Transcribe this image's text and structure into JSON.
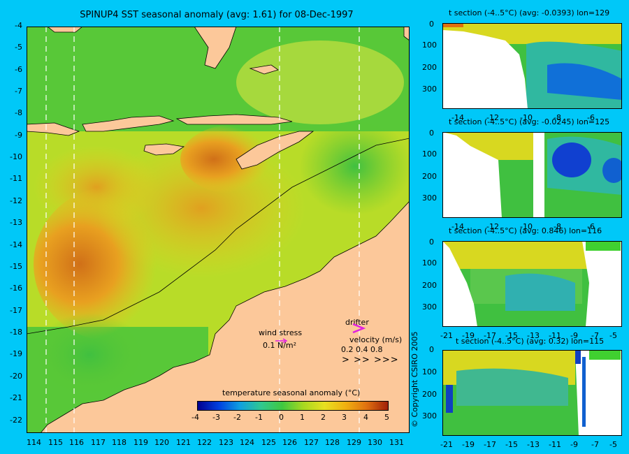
{
  "main_map": {
    "title": "SPINUP4 SST seasonal anomaly (avg: 1.61) for 08-Dec-1997",
    "lat_ticks": [
      "-4",
      "-5",
      "-6",
      "-7",
      "-8",
      "-9",
      "-10",
      "-11",
      "-12",
      "-13",
      "-14",
      "-15",
      "-16",
      "-17",
      "-18",
      "-19",
      "-20",
      "-21",
      "-22"
    ],
    "lon_ticks": [
      "114",
      "115",
      "116",
      "117",
      "118",
      "119",
      "120",
      "121",
      "122",
      "123",
      "124",
      "125",
      "126",
      "127",
      "128",
      "129",
      "130",
      "131"
    ],
    "legend": {
      "wind_title": "wind stress",
      "wind_scale": "0.1 N/m²",
      "drifter_label": "drifter",
      "velocity_label": "velocity (m/s)",
      "velocity_scale": "0.2  0.4  0.8",
      "arrow_glyphs": ">   >>  >>>"
    },
    "colorbar": {
      "title": "temperature seasonal anomaly (°C)",
      "ticks": [
        "-4",
        "-3",
        "-2",
        "-1",
        "0",
        "1",
        "2",
        "3",
        "4",
        "5"
      ],
      "range": [
        -4,
        5
      ]
    }
  },
  "sections": [
    {
      "title": "t section (-4..5°C) (avg: -0.0393) lon=129",
      "x_ticks": [
        "-14",
        "-12",
        "-10",
        "-8",
        "-6"
      ],
      "y_ticks": [
        "0",
        "100",
        "200",
        "300"
      ]
    },
    {
      "title": "t section (-4..5°C) (avg: -0.0245) lon=125",
      "x_ticks": [
        "-14",
        "-12",
        "-10",
        "-8",
        "-6"
      ],
      "y_ticks": [
        "0",
        "100",
        "200",
        "300"
      ]
    },
    {
      "title": "t section (-4..5°C) (avg: 0.846) lon=116",
      "x_ticks": [
        "-21",
        "-19",
        "-17",
        "-15",
        "-13",
        "-11",
        "-9",
        "-7",
        "-5"
      ],
      "y_ticks": [
        "0",
        "100",
        "200",
        "300"
      ]
    },
    {
      "title": "t section (-4..5°C) (avg: 0.32) lon=115",
      "x_ticks": [
        "-21",
        "-19",
        "-17",
        "-15",
        "-13",
        "-11",
        "-9",
        "-7",
        "-5"
      ],
      "y_ticks": [
        "0",
        "100",
        "200",
        "300"
      ]
    }
  ],
  "copyright": "© Copyright CSIRO 2005",
  "colors": {
    "background": "#00c8f8",
    "land": "#fcc89a",
    "ocean_mid": "#c8e020"
  }
}
